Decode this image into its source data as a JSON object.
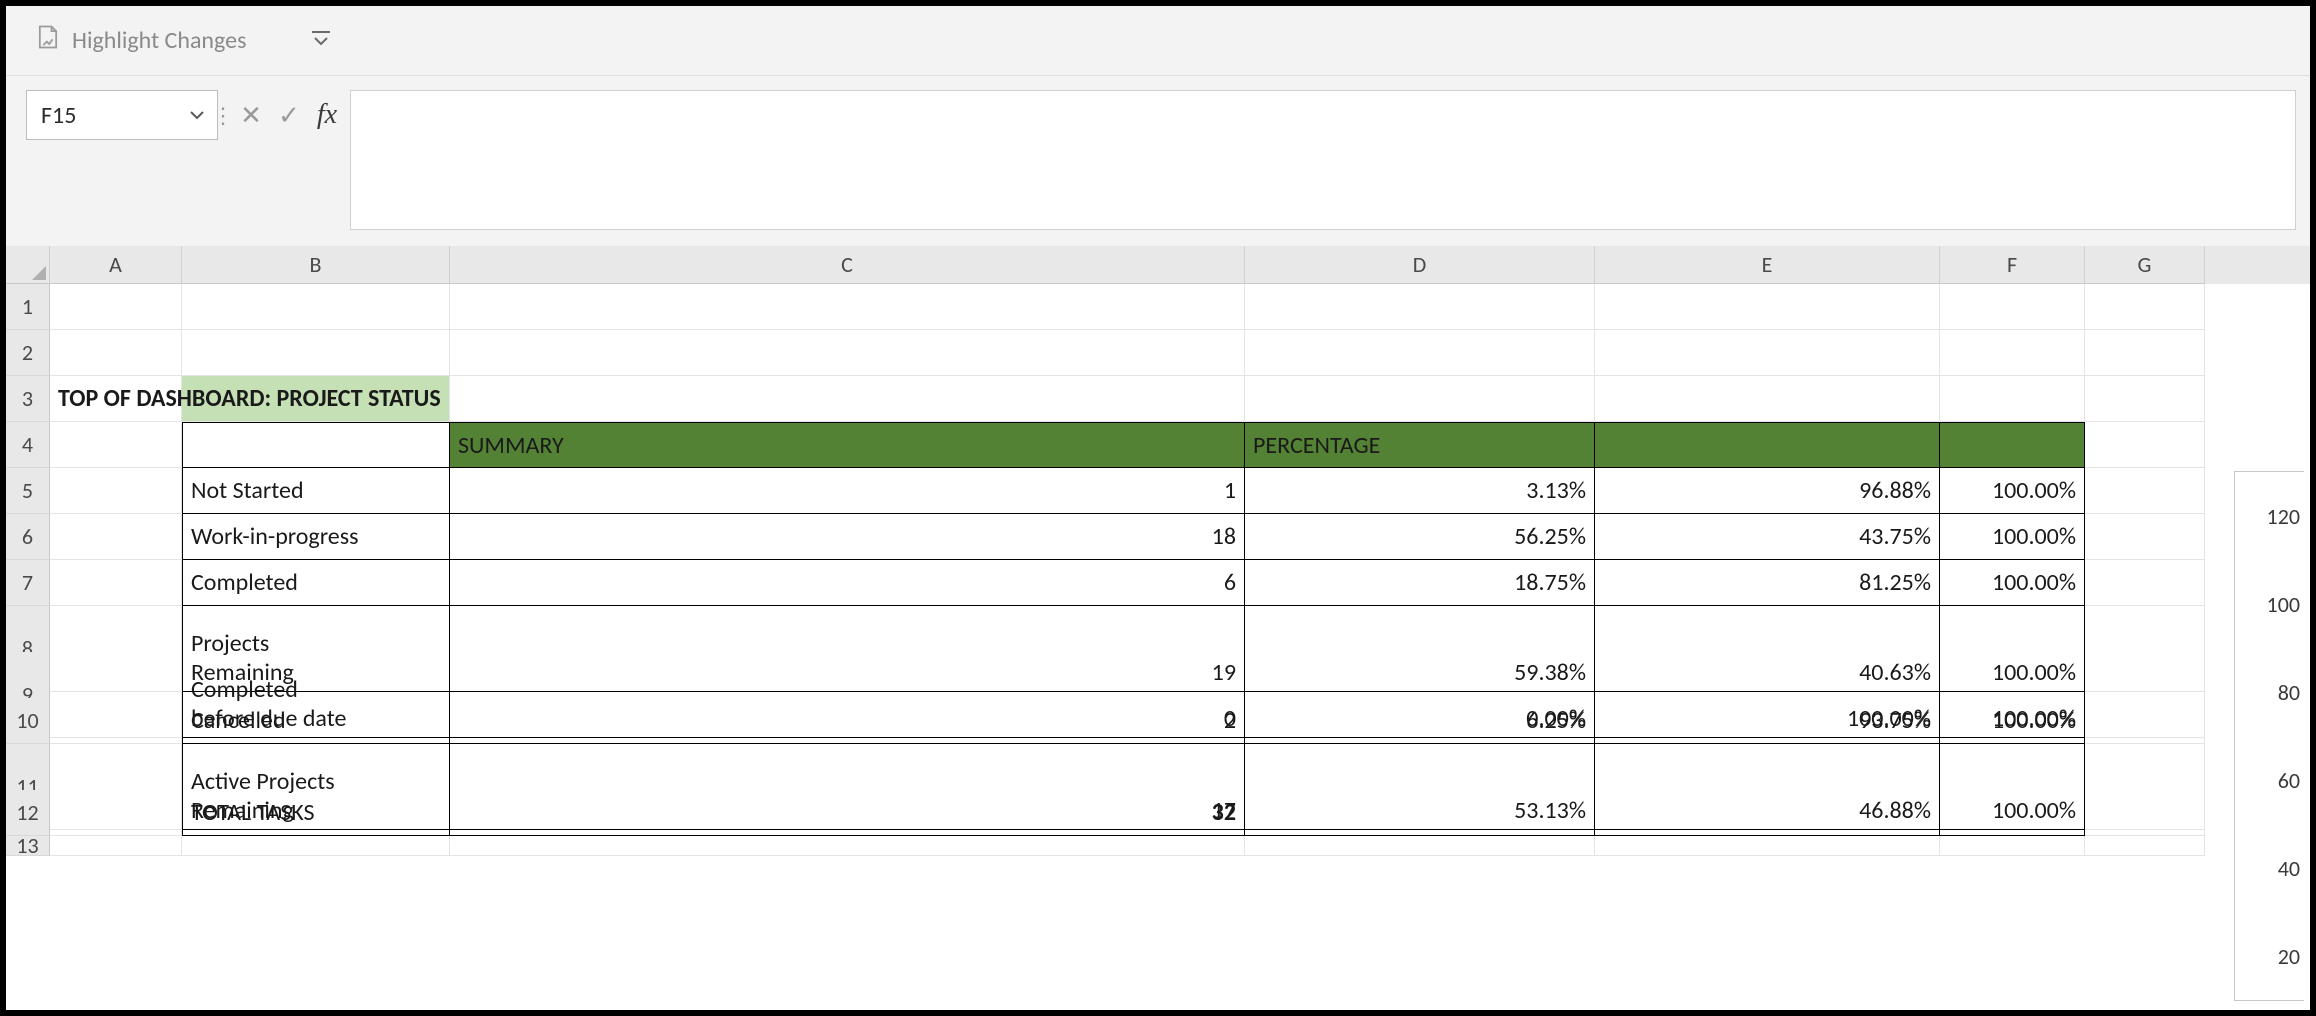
{
  "ribbon": {
    "highlight_changes_label": "Highlight Changes"
  },
  "namebox": {
    "value": "F15"
  },
  "formula_bar": {
    "value": ""
  },
  "columns": [
    "A",
    "B",
    "C",
    "D",
    "E",
    "F",
    "G"
  ],
  "rownums": [
    "1",
    "2",
    "3",
    "4",
    "5",
    "6",
    "7",
    "8",
    "9",
    "10",
    "11",
    "12",
    "13"
  ],
  "row3": {
    "title": "TOP OF DASHBOARD: PROJECT STATUS"
  },
  "header_row": {
    "b": "",
    "c": "SUMMARY",
    "d": "PERCENTAGE",
    "e": "",
    "f": ""
  },
  "table": {
    "rows": [
      {
        "label": "Not Started",
        "count": "1",
        "pct": "3.13%",
        "rem": "96.88%",
        "tot": "100.00%",
        "tall": false
      },
      {
        "label": "Work-in-progress",
        "count": "18",
        "pct": "56.25%",
        "rem": "43.75%",
        "tot": "100.00%",
        "tall": false
      },
      {
        "label": "Completed",
        "count": "6",
        "pct": "18.75%",
        "rem": "81.25%",
        "tot": "100.00%",
        "tall": false
      },
      {
        "label": "Projects\nRemaining",
        "count": "19",
        "pct": "59.38%",
        "rem": "40.63%",
        "tot": "100.00%",
        "tall": true
      },
      {
        "label": "Completed\nbefore due date",
        "count": "0",
        "pct": "0.00%",
        "rem": "100.00%",
        "tot": "100.00%",
        "tall": true
      },
      {
        "label": "Cancelled",
        "count": "2",
        "pct": "6.25%",
        "rem": "93.75%",
        "tot": "100.00%",
        "tall": false
      },
      {
        "label": "Active Projects\nRemaining",
        "count": "17",
        "pct": "53.13%",
        "rem": "46.88%",
        "tot": "100.00%",
        "tall": true
      }
    ],
    "total_label": "TOTAL TASKS",
    "total_count": "32"
  },
  "chart_axis_labels": [
    "120",
    "100",
    "80",
    "60",
    "40",
    "20"
  ],
  "colors": {
    "ribbon_bg": "#f3f3f3",
    "header_fill": "#548235",
    "b3_fill": "#c5e0b4",
    "gridline": "#e4e4e4",
    "table_border": "#000000"
  }
}
